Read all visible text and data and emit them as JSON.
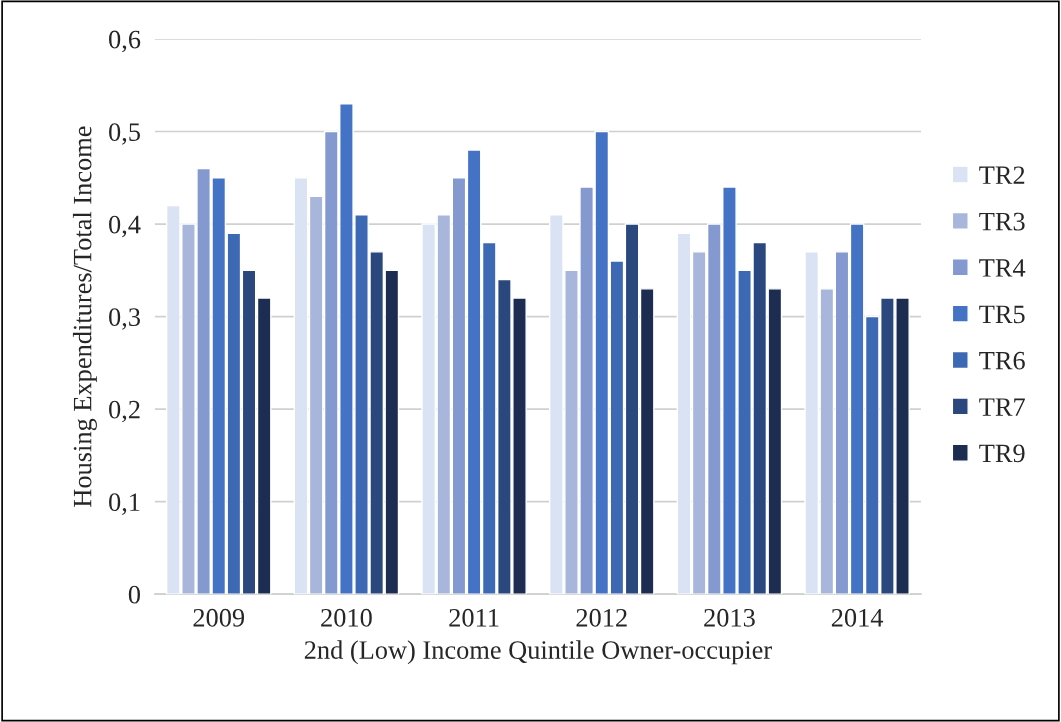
{
  "chart_data": {
    "type": "bar",
    "xlabel": "2nd (Low) Income Quintile Owner-occupier",
    "ylabel": "Housing Expenditures/Total Income",
    "categories": [
      "2009",
      "2010",
      "2011",
      "2012",
      "2013",
      "2014"
    ],
    "series": [
      {
        "name": "TR2",
        "color": "#dae3f3",
        "values": [
          0.42,
          0.45,
          0.4,
          0.41,
          0.39,
          0.37
        ]
      },
      {
        "name": "TR3",
        "color": "#a9b6db",
        "values": [
          0.4,
          0.43,
          0.41,
          0.35,
          0.37,
          0.33
        ]
      },
      {
        "name": "TR4",
        "color": "#8399cf",
        "values": [
          0.46,
          0.5,
          0.45,
          0.44,
          0.4,
          0.37
        ]
      },
      {
        "name": "TR5",
        "color": "#4472c4",
        "values": [
          0.45,
          0.53,
          0.48,
          0.5,
          0.44,
          0.4
        ]
      },
      {
        "name": "TR6",
        "color": "#3d69b4",
        "values": [
          0.39,
          0.41,
          0.38,
          0.36,
          0.35,
          0.3
        ]
      },
      {
        "name": "TR7",
        "color": "#2a477e",
        "values": [
          0.35,
          0.37,
          0.34,
          0.4,
          0.38,
          0.32
        ]
      },
      {
        "name": "TR9",
        "color": "#1c2d51",
        "values": [
          0.32,
          0.35,
          0.32,
          0.33,
          0.33,
          0.32
        ]
      }
    ],
    "ylim": [
      0,
      0.6
    ],
    "yticks": [
      0,
      {
        "value": 0.1,
        "label": "0,1"
      },
      {
        "value": 0.2,
        "label": "0,2"
      },
      {
        "value": 0.3,
        "label": "0,3"
      },
      {
        "value": 0.4,
        "label": "0,4"
      },
      {
        "value": 0.5,
        "label": "0,5"
      },
      {
        "value": 0.6,
        "label": "0,6"
      }
    ],
    "grid": "y",
    "legend": "right"
  }
}
